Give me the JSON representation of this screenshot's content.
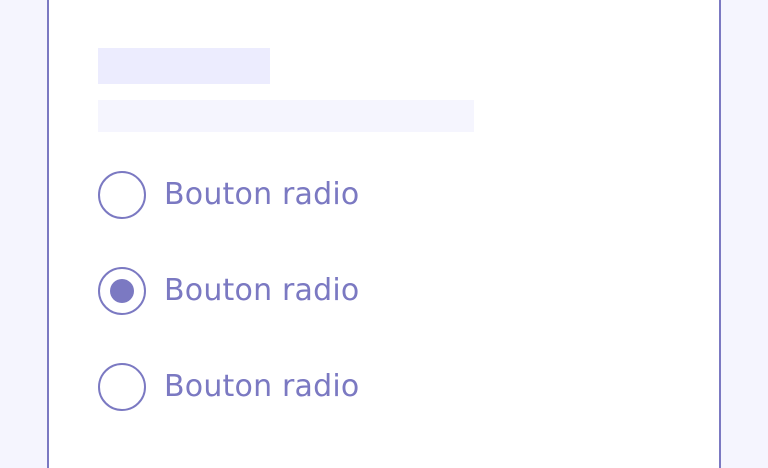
{
  "colors": {
    "page_background": "#F5F5FE",
    "card_background": "#FFFFFF",
    "accent": "#7B79C2",
    "skeleton_title": "#ECECFE",
    "skeleton_subtitle": "#F5F5FE"
  },
  "radio_group": {
    "options": [
      {
        "label": "Bouton radio",
        "checked": false
      },
      {
        "label": "Bouton radio",
        "checked": true
      },
      {
        "label": "Bouton radio",
        "checked": false
      }
    ]
  }
}
